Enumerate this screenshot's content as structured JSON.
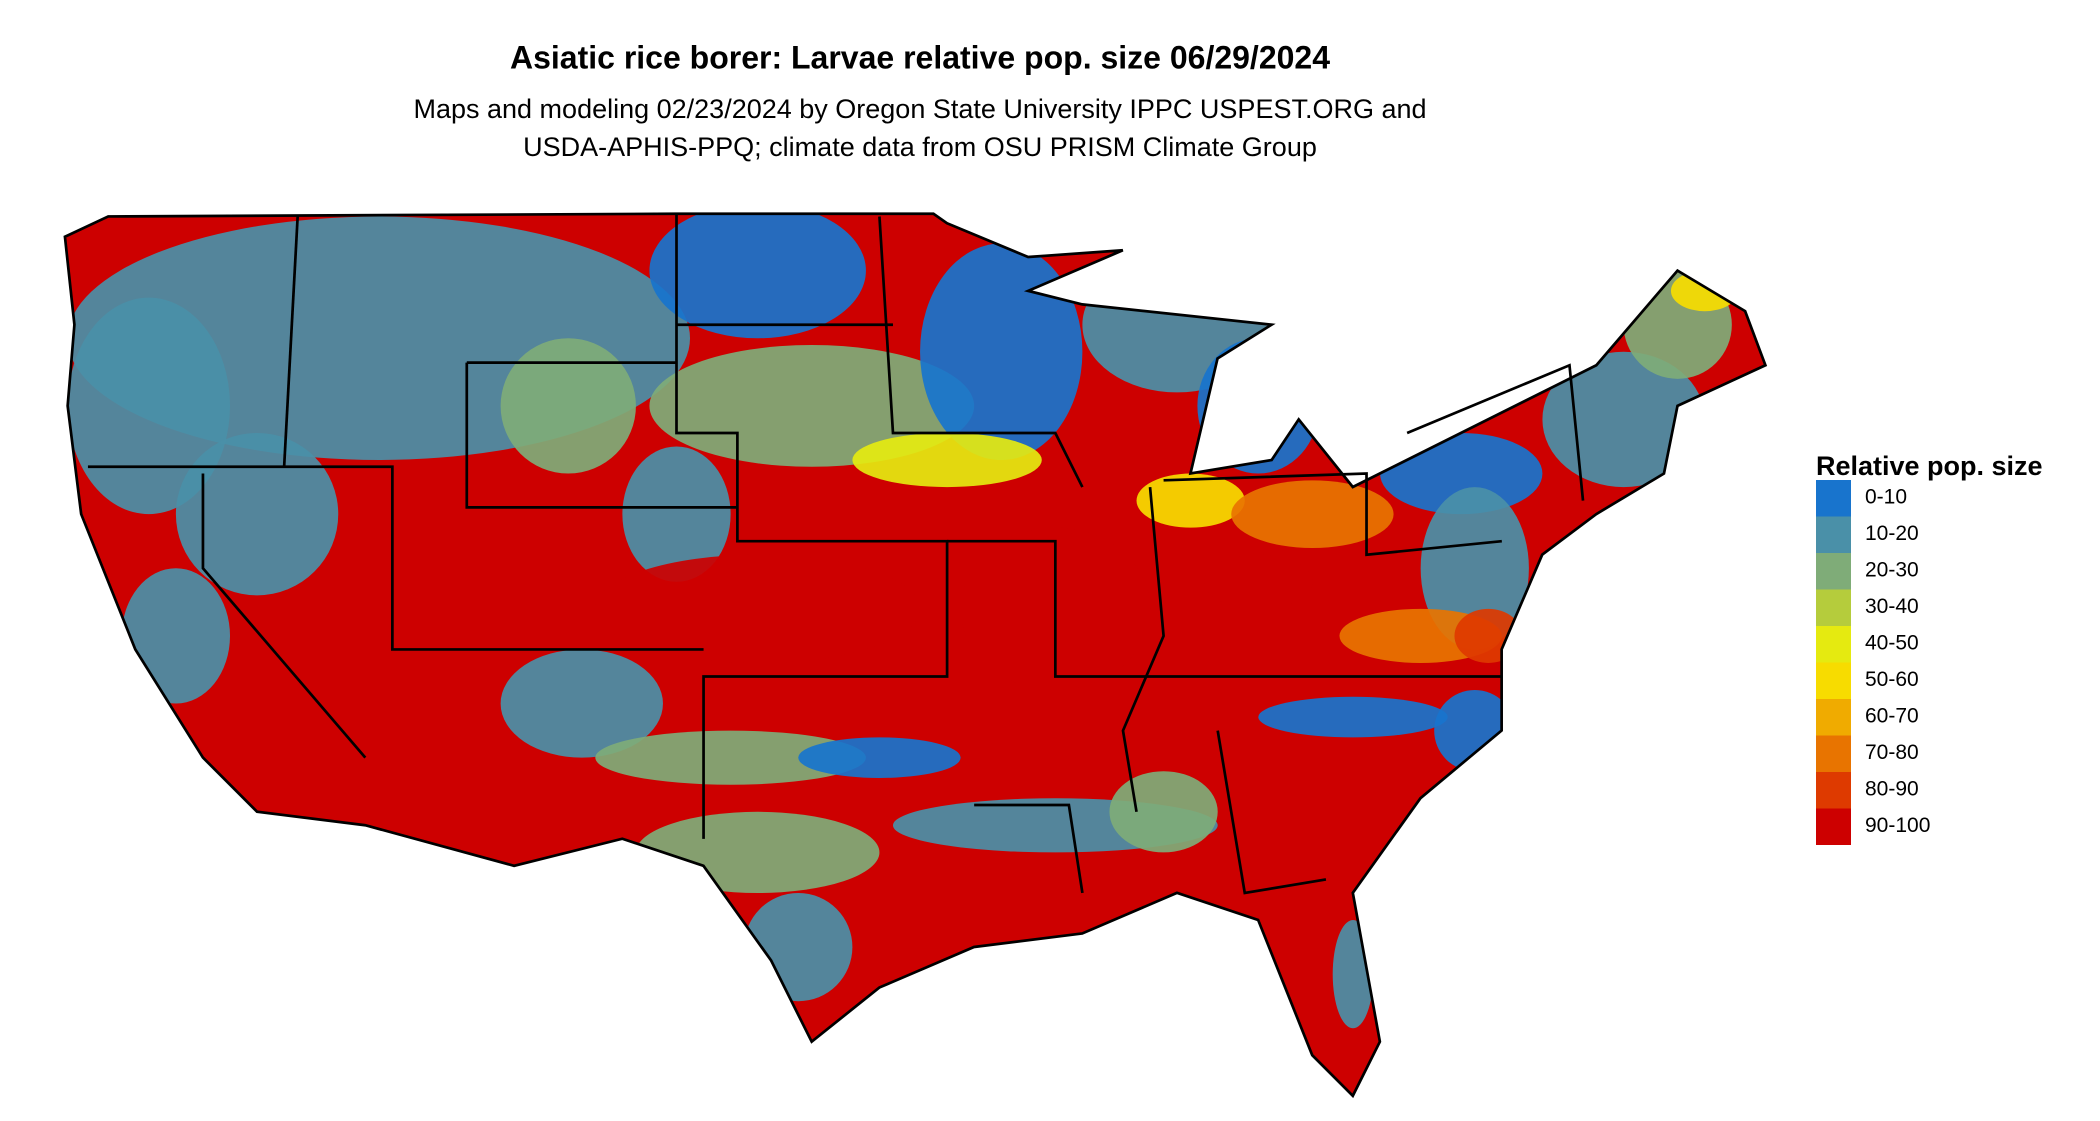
{
  "title": "Asiatic rice borer: Larvae relative pop. size 06/29/2024",
  "subtitle": [
    "Maps and modeling 02/23/2024 by Oregon State University IPPC USPEST.ORG and",
    "USDA-APHIS-PPQ; climate data from OSU PRISM Climate Group"
  ],
  "legend": {
    "title": "Relative pop. size",
    "items": [
      {
        "label": "0-10",
        "color": "#1874cd"
      },
      {
        "label": "10-20",
        "color": "#4a90a8"
      },
      {
        "label": "20-30",
        "color": "#7fac78"
      },
      {
        "label": "30-40",
        "color": "#b5cc3c"
      },
      {
        "label": "40-50",
        "color": "#e5ea10"
      },
      {
        "label": "50-60",
        "color": "#f7dc00"
      },
      {
        "label": "60-70",
        "color": "#f0ab00"
      },
      {
        "label": "70-80",
        "color": "#e87400"
      },
      {
        "label": "80-90",
        "color": "#de3a00"
      },
      {
        "label": "90-100",
        "color": "#cd0000"
      }
    ]
  }
}
